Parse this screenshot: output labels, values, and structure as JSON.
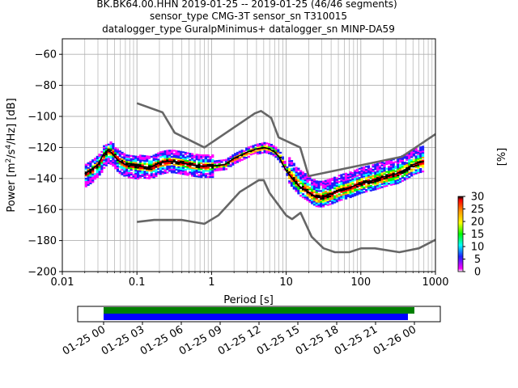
{
  "chart_data": [
    {
      "type": "heatmap",
      "title_lines": [
        "BK.BK64.00.HHN   2019-01-25 -- 2019-01-25  (46/46 segments)",
        "sensor_type CMG-3T sensor_sn T310015",
        "datalogger_type GuralpMinimus+ datalogger_sn MINP-DA59"
      ],
      "xlabel": "Period [s]",
      "ylabel_parts": [
        "Power [m",
        "2",
        "/s",
        "4",
        "/Hz] [dB]"
      ],
      "xscale": "log",
      "xlim": [
        0.01,
        1000
      ],
      "ylim": [
        -200,
        -50
      ],
      "xticks": [
        0.01,
        0.1,
        1,
        10,
        100,
        1000
      ],
      "xtick_labels": [
        "0.01",
        "0.1",
        "1",
        "10",
        "100",
        "1000"
      ],
      "yticks": [
        -60,
        -80,
        -100,
        -120,
        -140,
        -160,
        -180,
        -200
      ],
      "ytick_labels": [
        "−60",
        "−80",
        "−100",
        "−120",
        "−140",
        "−160",
        "−180",
        "−200"
      ],
      "grid": true,
      "colorbar": {
        "label": "[%]",
        "range": [
          0,
          30
        ],
        "ticks": [
          0,
          5,
          10,
          15,
          20,
          25,
          30
        ],
        "colors": [
          "#ffffff",
          "#ff00ff",
          "#1f1fff",
          "#00ffff",
          "#00ff00",
          "#ffff00",
          "#ff9900",
          "#ff0000",
          "#000000"
        ]
      },
      "series": [
        {
          "name": "",
          "role": "noise model upper bound",
          "color": "#666666",
          "points": [
            [
              0.1,
              -91.5
            ],
            [
              0.22,
              -97.4
            ],
            [
              0.32,
              -110.5
            ],
            [
              0.8,
              -120.0
            ],
            [
              3.8,
              -98.0
            ],
            [
              4.6,
              -96.5
            ],
            [
              6.3,
              -101.0
            ],
            [
              7.9,
              -113.5
            ],
            [
              15.4,
              -120.0
            ],
            [
              20.0,
              -138.5
            ],
            [
              354.8,
              -126.0
            ],
            [
              1000,
              -111.4
            ]
          ]
        },
        {
          "name": "",
          "role": "noise model lower bound",
          "color": "#666666",
          "points": [
            [
              0.1,
              -168.0
            ],
            [
              0.17,
              -166.7
            ],
            [
              0.4,
              -166.7
            ],
            [
              0.8,
              -169.2
            ],
            [
              1.24,
              -163.7
            ],
            [
              2.4,
              -148.6
            ],
            [
              4.3,
              -141.1
            ],
            [
              5.0,
              -141.1
            ],
            [
              6.0,
              -149.4
            ],
            [
              10.0,
              -163.8
            ],
            [
              12.0,
              -166.2
            ],
            [
              15.6,
              -162.1
            ],
            [
              21.9,
              -177.5
            ],
            [
              31.6,
              -185.0
            ],
            [
              45.0,
              -187.5
            ],
            [
              70.0,
              -187.5
            ],
            [
              101.0,
              -185.0
            ],
            [
              154.0,
              -185.0
            ],
            [
              328.0,
              -187.5
            ],
            [
              600.0,
              -185.0
            ],
            [
              1000,
              -179.5
            ]
          ]
        },
        {
          "name": "",
          "role": "mean PSD",
          "color": "#000000",
          "points": [
            [
              0.02,
              -137
            ],
            [
              0.025,
              -134
            ],
            [
              0.03,
              -131
            ],
            [
              0.035,
              -125
            ],
            [
              0.04,
              -122
            ],
            [
              0.045,
              -123
            ],
            [
              0.055,
              -128
            ],
            [
              0.07,
              -131
            ],
            [
              0.1,
              -132
            ],
            [
              0.15,
              -133
            ],
            [
              0.2,
              -130
            ],
            [
              0.25,
              -129
            ],
            [
              0.3,
              -129
            ],
            [
              0.4,
              -130
            ],
            [
              0.5,
              -131
            ],
            [
              0.7,
              -132
            ],
            [
              1.0,
              -132
            ],
            [
              1.5,
              -131
            ],
            [
              2.0,
              -127
            ],
            [
              3.0,
              -123
            ],
            [
              4.0,
              -121
            ],
            [
              5.0,
              -120
            ],
            [
              6.0,
              -121
            ],
            [
              7.0,
              -123
            ],
            [
              8.0,
              -126
            ],
            [
              9.0,
              -131
            ],
            [
              10.0,
              -135
            ],
            [
              12.0,
              -140
            ],
            [
              15.0,
              -145
            ],
            [
              20.0,
              -149
            ],
            [
              25.0,
              -152
            ],
            [
              30.0,
              -152
            ],
            [
              40.0,
              -150
            ],
            [
              50.0,
              -148
            ],
            [
              70.0,
              -146
            ],
            [
              100.0,
              -143
            ],
            [
              150.0,
              -141
            ],
            [
              200.0,
              -139
            ],
            [
              300.0,
              -137
            ],
            [
              400.0,
              -134
            ],
            [
              500.0,
              -131
            ],
            [
              700.0,
              -129
            ]
          ]
        }
      ],
      "psd_band": {
        "description": "histogram of PSD occurrence around the mean curve",
        "segments": [
          {
            "x_range": [
              0.02,
              0.1
            ],
            "spread_db": [
              -8,
              6
            ]
          },
          {
            "x_range": [
              0.1,
              1.0
            ],
            "spread_db": [
              -7,
              7
            ]
          },
          {
            "x_range": [
              1.0,
              10.0
            ],
            "spread_db": [
              -3,
              3
            ]
          },
          {
            "x_range": [
              10.0,
              700.0
            ],
            "spread_db": [
              -6,
              10
            ]
          }
        ]
      }
    },
    {
      "type": "timeline",
      "xlim_hours": [
        -2,
        26
      ],
      "tick_hours": [
        0,
        3,
        6,
        9,
        12,
        15,
        18,
        21,
        24
      ],
      "tick_labels": [
        "01-25 00",
        "01-25 03",
        "01-25 06",
        "01-25 09",
        "01-25 12",
        "01-25 15",
        "01-25 18",
        "01-25 21",
        "01-26 00"
      ],
      "bars": [
        {
          "name": "",
          "color": "#008000",
          "start_hour": 0,
          "end_hour": 24
        },
        {
          "name": "",
          "color": "#0000ff",
          "start_hour": 0,
          "end_hour": 23.5
        }
      ]
    }
  ]
}
